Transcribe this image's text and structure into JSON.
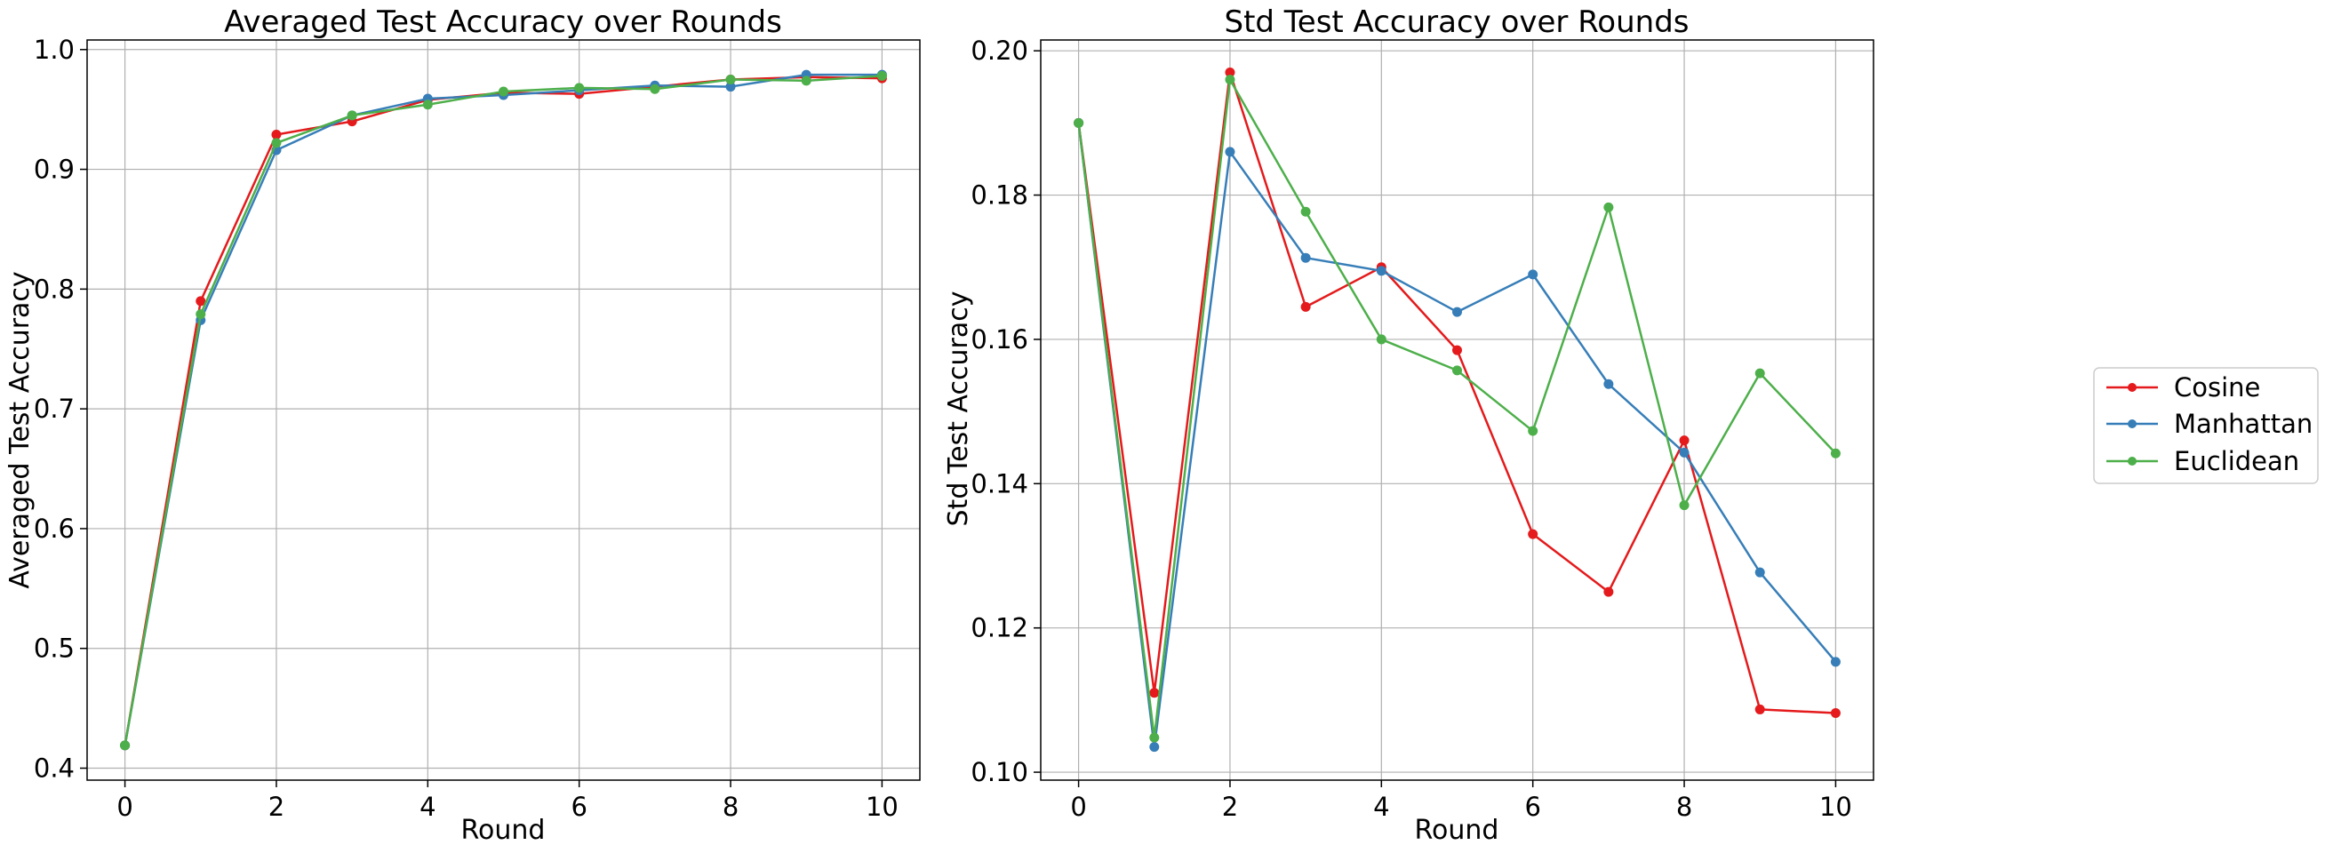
{
  "colors": {
    "Cosine": "#e41a1c",
    "Manhattan": "#377eb8",
    "Euclidean": "#4daf4a",
    "grid": "#b0b0b0"
  },
  "legend": {
    "placement": "right",
    "items": [
      "Cosine",
      "Manhattan",
      "Euclidean"
    ]
  },
  "chart_data": [
    {
      "type": "line",
      "title": "Averaged Test Accuracy over Rounds",
      "xlabel": "Round",
      "ylabel": "Averaged Test Accuracy",
      "xlim": [
        -0.5,
        10.5
      ],
      "ylim": [
        0.39,
        1.008
      ],
      "xticks": [
        0,
        2,
        4,
        6,
        8,
        10
      ],
      "yticks": [
        0.4,
        0.5,
        0.6,
        0.7,
        0.8,
        0.9,
        1.0
      ],
      "ytick_labels": [
        "0.4",
        "0.5",
        "0.6",
        "0.7",
        "0.8",
        "0.9",
        "1.0"
      ],
      "grid": true,
      "x": [
        0,
        1,
        2,
        3,
        4,
        5,
        6,
        7,
        8,
        9,
        10
      ],
      "series": [
        {
          "name": "Cosine",
          "values": [
            0.419,
            0.79,
            0.929,
            0.94,
            0.958,
            0.964,
            0.963,
            0.969,
            0.975,
            0.977,
            0.976
          ]
        },
        {
          "name": "Manhattan",
          "values": [
            0.419,
            0.774,
            0.916,
            0.945,
            0.959,
            0.962,
            0.966,
            0.97,
            0.969,
            0.979,
            0.979
          ]
        },
        {
          "name": "Euclidean",
          "values": [
            0.419,
            0.779,
            0.922,
            0.945,
            0.954,
            0.965,
            0.968,
            0.967,
            0.975,
            0.974,
            0.978
          ]
        }
      ]
    },
    {
      "type": "line",
      "title": "Std Test Accuracy over Rounds",
      "xlabel": "Round",
      "ylabel": "Std Test Accuracy",
      "xlim": [
        -0.5,
        10.5
      ],
      "ylim": [
        0.0989,
        0.2015
      ],
      "xticks": [
        0,
        2,
        4,
        6,
        8,
        10
      ],
      "yticks": [
        0.1,
        0.12,
        0.14,
        0.16,
        0.18,
        0.2
      ],
      "ytick_labels": [
        "0.10",
        "0.12",
        "0.14",
        "0.16",
        "0.18",
        "0.20"
      ],
      "grid": true,
      "x": [
        0,
        1,
        2,
        3,
        4,
        5,
        6,
        7,
        8,
        9,
        10
      ],
      "series": [
        {
          "name": "Cosine",
          "values": [
            0.19,
            0.111,
            0.197,
            0.1645,
            0.17,
            0.1585,
            0.133,
            0.125,
            0.146,
            0.1087,
            0.1082
          ]
        },
        {
          "name": "Manhattan",
          "values": [
            0.19,
            0.1035,
            0.186,
            0.1713,
            0.1695,
            0.1638,
            0.169,
            0.1538,
            0.1443,
            0.1277,
            0.1153
          ]
        },
        {
          "name": "Euclidean",
          "values": [
            0.19,
            0.1048,
            0.196,
            0.1777,
            0.16,
            0.1557,
            0.1473,
            0.1783,
            0.137,
            0.1553,
            0.1442
          ]
        }
      ]
    }
  ]
}
